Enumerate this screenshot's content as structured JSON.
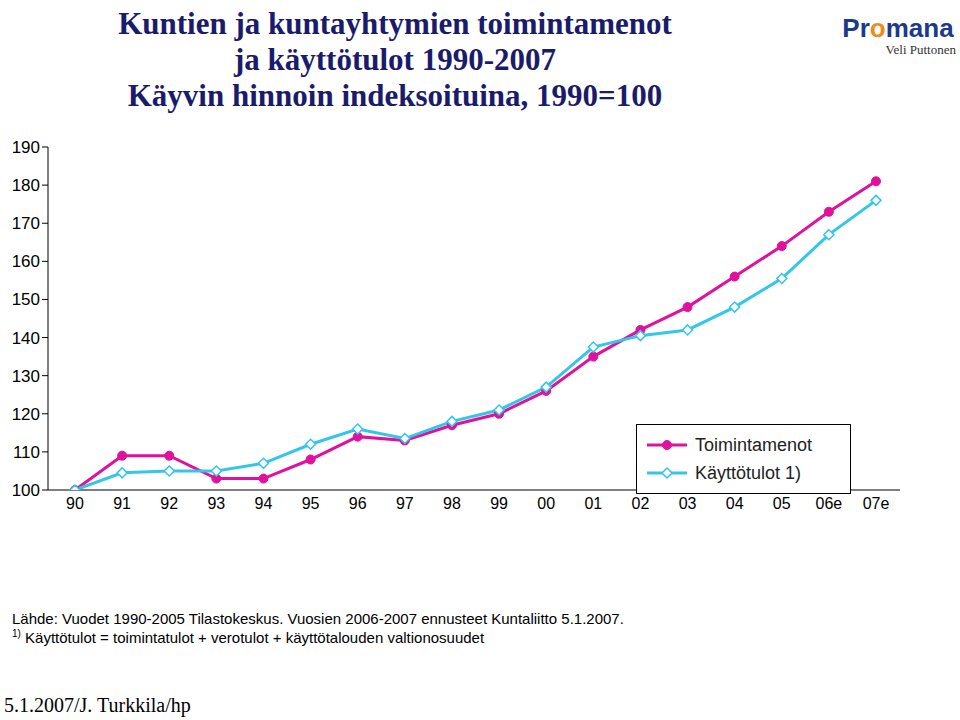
{
  "title": [
    "Kuntien ja kuntayhtymien toimintamenot",
    "ja käyttötulot 1990-2007",
    "Käyvin hinnoin indeksoituina, 1990=100"
  ],
  "logo": {
    "name": "Promana",
    "author": "Veli Puttonen"
  },
  "source": "Lähde: Vuodet 1990-2005 Tilastokeskus. Vuosien 2006-2007 ennusteet Kuntaliitto 5.1.2007.",
  "footnote_mark": "1)",
  "footnote": "Käyttötulot = toimintatulot + verotulot + käyttötalouden valtionosuudet",
  "footer": "5.1.2007/J. Turkkila/hp",
  "chart_data": {
    "type": "line",
    "categories": [
      "90",
      "91",
      "92",
      "93",
      "94",
      "95",
      "96",
      "97",
      "98",
      "99",
      "00",
      "01",
      "02",
      "03",
      "04",
      "05",
      "06e",
      "07e"
    ],
    "series": [
      {
        "name": "Toimintamenot",
        "color": "#e0119c",
        "marker": "circle",
        "values": [
          100,
          109,
          109,
          103,
          103,
          108,
          114,
          113,
          117,
          120,
          126,
          135,
          142,
          148,
          156,
          164,
          173,
          181
        ]
      },
      {
        "name": "Käyttötulot 1)",
        "color": "#33c6ea",
        "marker": "diamond",
        "values": [
          100,
          104.5,
          105,
          105,
          107,
          112,
          116,
          113.5,
          118,
          121,
          127,
          137.5,
          140.5,
          142,
          148,
          155.5,
          167,
          176
        ]
      }
    ],
    "ylim": [
      100,
      190
    ],
    "yticks": [
      100,
      110,
      120,
      130,
      140,
      150,
      160,
      170,
      180,
      190
    ],
    "grid": false,
    "legend": "right"
  }
}
